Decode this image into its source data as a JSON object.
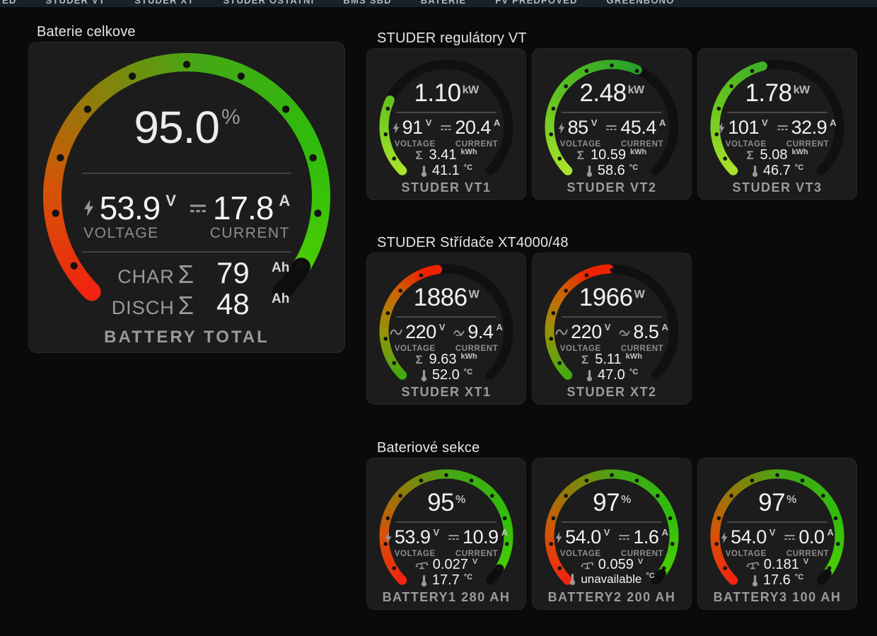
{
  "nav": {
    "items": [
      "ED",
      "STUDER VT",
      "STUDER XT",
      "STUDER OSTATNÍ",
      "BMS SBD",
      "BATERIE",
      "FV PŘEDPOVĚĎ",
      "GREENBONO"
    ]
  },
  "labels": {
    "voltage": "VOLTAGE",
    "current": "CURRENT",
    "sigma": "Σ"
  },
  "sections": {
    "battery_total": {
      "title": "Baterie celkove",
      "card": {
        "name": "BATTERY TOTAL",
        "soc": "95.0",
        "soc_unit": "%",
        "voltage": "53.9",
        "voltage_unit": "V",
        "current": "17.8",
        "current_unit": "A",
        "char_label": "CHAR",
        "char_value": "79",
        "char_unit": "Ah",
        "disch_label": "DISCH",
        "disch_value": "48",
        "disch_unit": "Ah",
        "gauge": {
          "type": "battery",
          "fraction": 0.95
        }
      }
    },
    "vt": {
      "title": "STUDER regulátory VT",
      "cards": [
        {
          "name": "STUDER VT1",
          "power": "1.10",
          "power_unit": "kW",
          "voltage": "91",
          "voltage_unit": "V",
          "current": "20.4",
          "current_unit": "A",
          "energy": "3.41",
          "energy_unit": "kWh",
          "temp": "41.1",
          "temp_unit": "°C",
          "gauge": {
            "type": "vt",
            "fraction": 0.26
          }
        },
        {
          "name": "STUDER VT2",
          "power": "2.48",
          "power_unit": "kW",
          "voltage": "85",
          "voltage_unit": "V",
          "current": "45.4",
          "current_unit": "A",
          "energy": "10.59",
          "energy_unit": "kWh",
          "temp": "58.6",
          "temp_unit": "°C",
          "gauge": {
            "type": "vt",
            "fraction": 0.59
          }
        },
        {
          "name": "STUDER VT3",
          "power": "1.78",
          "power_unit": "kW",
          "voltage": "101",
          "voltage_unit": "V",
          "current": "32.9",
          "current_unit": "A",
          "energy": "5.08",
          "energy_unit": "kWh",
          "temp": "46.7",
          "temp_unit": "°C",
          "gauge": {
            "type": "vt",
            "fraction": 0.45
          }
        }
      ]
    },
    "xt": {
      "title": "STUDER Střídače XT4000/48",
      "cards": [
        {
          "name": "STUDER XT1",
          "power": "1886",
          "power_unit": "W",
          "voltage": "220",
          "voltage_unit": "V",
          "current": "9.4",
          "current_unit": "A",
          "energy": "9.63",
          "energy_unit": "kWh",
          "temp": "52.0",
          "temp_unit": "°C",
          "gauge": {
            "type": "xt",
            "fraction": 0.47
          }
        },
        {
          "name": "STUDER XT2",
          "power": "1966",
          "power_unit": "W",
          "voltage": "220",
          "voltage_unit": "V",
          "current": "8.5",
          "current_unit": "A",
          "energy": "5.11",
          "energy_unit": "kWh",
          "temp": "47.0",
          "temp_unit": "°C",
          "gauge": {
            "type": "xt",
            "fraction": 0.49
          }
        }
      ]
    },
    "bat": {
      "title": "Bateriové sekce",
      "cards": [
        {
          "name": "BATTERY1 280 AH",
          "soc": "95",
          "soc_unit": "%",
          "voltage": "53.9",
          "voltage_unit": "V",
          "current": "10.9",
          "current_unit": "A",
          "diff": "0.027",
          "diff_unit": "V",
          "temp": "17.7",
          "temp_unit": "°C",
          "gauge": {
            "type": "battery",
            "fraction": 0.95
          }
        },
        {
          "name": "BATTERY2 200 AH",
          "soc": "97",
          "soc_unit": "%",
          "voltage": "54.0",
          "voltage_unit": "V",
          "current": "1.6",
          "current_unit": "A",
          "diff": "0.059",
          "diff_unit": "V",
          "temp": "unavailable",
          "temp_unit": "°C",
          "gauge": {
            "type": "battery",
            "fraction": 0.97
          }
        },
        {
          "name": "BATTERY3 100 AH",
          "soc": "97",
          "soc_unit": "%",
          "voltage": "54.0",
          "voltage_unit": "V",
          "current": "0.0",
          "current_unit": "A",
          "diff": "0.181",
          "diff_unit": "V",
          "temp": "17.6",
          "temp_unit": "°C",
          "gauge": {
            "type": "battery",
            "fraction": 0.97
          }
        }
      ]
    }
  },
  "icons": {
    "voltage_dc": "lightning-bolt-icon",
    "current_dc": "dc-symbol-icon",
    "voltage_ac": "sine-wave-icon",
    "current_ac": "sine-wave-icon",
    "energy_sum": "sigma-icon",
    "temperature": "thermometer-icon",
    "cell_diff": "scale-balance-icon"
  },
  "gauge_styles": {
    "battery": {
      "track": "#0e0e0e",
      "dot": "#121212",
      "stops": [
        [
          0,
          "#f02410"
        ],
        [
          0.18,
          "#d55407"
        ],
        [
          0.34,
          "#8f7d0a"
        ],
        [
          0.52,
          "#44a816"
        ],
        [
          0.75,
          "#2fbc0c"
        ],
        [
          1,
          "#4fd102"
        ]
      ]
    },
    "vt": {
      "track": "#101010",
      "dot": "#121212",
      "stops": [
        [
          0,
          "#a9e32d"
        ],
        [
          0.25,
          "#66c51e"
        ],
        [
          0.55,
          "#2aa42a"
        ],
        [
          1,
          "#1e7d1e"
        ]
      ]
    },
    "xt": {
      "track": "#101010",
      "dot": "#121212",
      "stops": [
        [
          0,
          "#44aa10"
        ],
        [
          0.17,
          "#98920a"
        ],
        [
          0.3,
          "#c86703"
        ],
        [
          0.42,
          "#ee2200"
        ],
        [
          1,
          "#f32005"
        ]
      ]
    }
  }
}
